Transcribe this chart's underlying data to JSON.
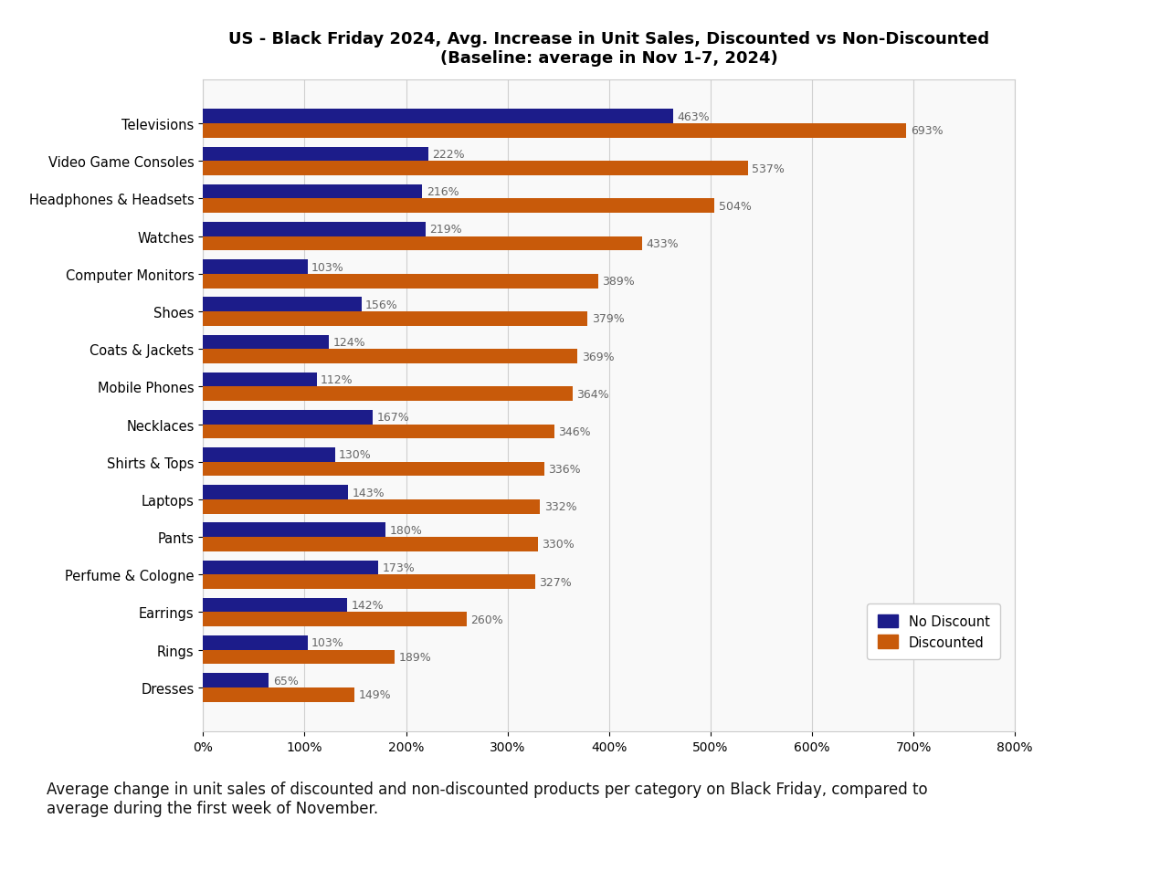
{
  "title_line1": "US - Black Friday 2024, Avg. Increase in Unit Sales, Discounted vs Non-Discounted",
  "title_line2": "(Baseline: average in Nov 1-7, 2024)",
  "categories": [
    "Televisions",
    "Video Game Consoles",
    "Headphones & Headsets",
    "Watches",
    "Computer Monitors",
    "Shoes",
    "Coats & Jackets",
    "Mobile Phones",
    "Necklaces",
    "Shirts & Tops",
    "Laptops",
    "Pants",
    "Perfume & Cologne",
    "Earrings",
    "Rings",
    "Dresses"
  ],
  "no_discount": [
    463,
    222,
    216,
    219,
    103,
    156,
    124,
    112,
    167,
    130,
    143,
    180,
    173,
    142,
    103,
    65
  ],
  "discounted": [
    693,
    537,
    504,
    433,
    389,
    379,
    369,
    364,
    346,
    336,
    332,
    330,
    327,
    260,
    189,
    149
  ],
  "color_no_discount": "#1c1c8a",
  "color_discounted": "#c85a0a",
  "background_color": "#ffffff",
  "chart_background": "#f9f9f9",
  "xlim": [
    0,
    800
  ],
  "xticks": [
    0,
    100,
    200,
    300,
    400,
    500,
    600,
    700,
    800
  ],
  "xtick_labels": [
    "0%",
    "100%",
    "200%",
    "300%",
    "400%",
    "500%",
    "600%",
    "700%",
    "800%"
  ],
  "legend_labels": [
    "No Discount",
    "Discounted"
  ],
  "caption": "Average change in unit sales of discounted and non-discounted products per category on Black Friday, compared to\naverage during the first week of November.",
  "title_fontsize": 13,
  "label_fontsize": 10.5,
  "tick_fontsize": 10,
  "bar_label_fontsize": 9,
  "caption_fontsize": 12
}
